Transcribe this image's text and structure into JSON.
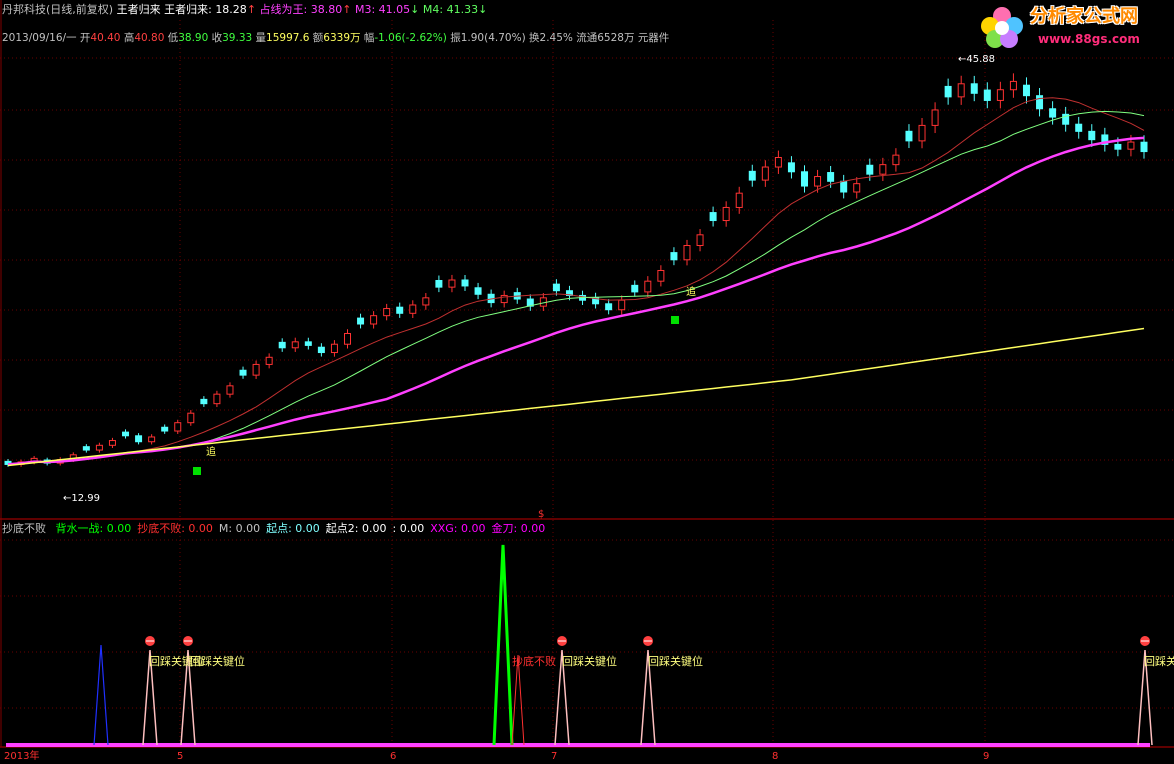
{
  "header": {
    "stock": "丹邦科技",
    "period": "(日线,前复权)",
    "indicator": "王者归来",
    "indicator2": "王者归来:",
    "value1": "18.28",
    "label_ma": "占线为王:",
    "value_ma": "38.80",
    "m3_label": "M3:",
    "m3_value": "41.05",
    "m4_label": "M4:",
    "m4_value": "41.33"
  },
  "quote": {
    "date": "2013/09/16/一",
    "open_label": "开",
    "open": "40.40",
    "high_label": "高",
    "high": "40.80",
    "low_label": "低",
    "low": "38.90",
    "close_label": "收",
    "close": "39.33",
    "volume_label": "量",
    "volume": "15997.6",
    "amount_label": "额",
    "amount": "6339万",
    "change_label": "幅",
    "change": "-1.06",
    "change_pct": "(-2.62%)",
    "amp_label": "振",
    "amp": "1.90",
    "amp_pct": "(4.70%)",
    "turnover_label": "换",
    "turnover": "2.45%",
    "float_label": "流通",
    "float": "6528万",
    "sector": "元器件"
  },
  "logo": {
    "site_name": "分析家公式网",
    "url": "www.88gs.com"
  },
  "price_labels": {
    "high_mark": "45.88",
    "low_mark": "12.99",
    "chase1": "追",
    "chase2": "追"
  },
  "sub": {
    "name": "抄底不败",
    "items": [
      {
        "label": "背水一战:",
        "value": "0.00",
        "color": "#00ff00"
      },
      {
        "label": "抄底不败:",
        "value": "0.00",
        "color": "#ff3030"
      },
      {
        "label": "M:",
        "value": "0.00",
        "color": "#c0c0c0"
      },
      {
        "label": "起点:",
        "value": "0.00",
        "color": "#80ffff"
      },
      {
        "label": "起点2:",
        "value": "0.00",
        "color": "#ffffff"
      },
      {
        "label": ":",
        "value": "0.00",
        "color": "#ffffff"
      },
      {
        "label": "XXG:",
        "value": "0.00",
        "color": "#ff00ff"
      },
      {
        "label": "金刀:",
        "value": "0.00",
        "color": "#ff00ff"
      }
    ],
    "signal_label": "回踩关键位",
    "signal_label2": "抄底不败",
    "dollar": "$"
  },
  "time_axis": {
    "labels": [
      "2013年",
      "5",
      "6",
      "7",
      "8",
      "9"
    ]
  },
  "colors": {
    "up": "#ff3232",
    "down": "#54ffff",
    "ma_short": "#ffffff",
    "ma1": "#c03030",
    "ma2": "#80ff80",
    "ma3": "#ff40ff",
    "ma4": "#ffff60",
    "grid": "#800000"
  },
  "chart_data": {
    "type": "candlestick",
    "title": "丹邦科技 (日线,前复权)",
    "ylim": [
      10,
      47
    ],
    "x_months": [
      "2013年",
      "5",
      "6",
      "7",
      "8",
      "9"
    ],
    "closes": [
      12.99,
      13.2,
      13.5,
      13.1,
      13.4,
      13.8,
      14.2,
      14.6,
      15.0,
      15.4,
      14.9,
      15.3,
      15.8,
      16.5,
      17.3,
      18.1,
      18.9,
      19.6,
      20.5,
      21.4,
      22.0,
      22.8,
      23.3,
      23.0,
      22.4,
      23.1,
      24.0,
      24.8,
      25.5,
      26.1,
      25.7,
      26.4,
      27.0,
      27.9,
      28.5,
      28.0,
      27.3,
      26.6,
      27.2,
      26.9,
      26.3,
      27.0,
      27.6,
      27.2,
      26.8,
      26.5,
      26.0,
      26.8,
      27.5,
      28.4,
      29.3,
      30.2,
      31.4,
      32.3,
      33.5,
      34.6,
      35.8,
      36.9,
      38.0,
      38.8,
      37.6,
      36.4,
      37.2,
      36.8,
      35.9,
      36.6,
      37.4,
      38.2,
      39.0,
      40.2,
      41.5,
      42.8,
      43.9,
      45.0,
      44.2,
      43.6,
      44.5,
      45.2,
      44.0,
      42.9,
      42.2,
      41.6,
      41.0,
      40.3,
      39.9,
      39.5,
      40.1,
      39.3
    ]
  }
}
